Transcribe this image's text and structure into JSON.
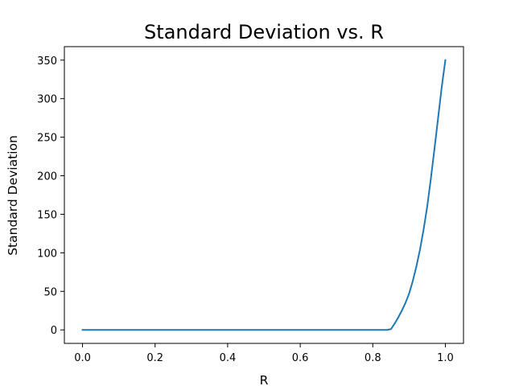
{
  "chart_data": {
    "type": "line",
    "title": "Standard Deviation vs. R",
    "xlabel": "R",
    "ylabel": "Standard Deviation",
    "xlim": [
      -0.05,
      1.05
    ],
    "ylim": [
      -17.5,
      367.5
    ],
    "xticks": [
      0.0,
      0.2,
      0.4,
      0.6,
      0.8,
      1.0
    ],
    "xtick_labels": [
      "0.0",
      "0.2",
      "0.4",
      "0.6",
      "0.8",
      "1.0"
    ],
    "yticks": [
      0,
      50,
      100,
      150,
      200,
      250,
      300,
      350
    ],
    "ytick_labels": [
      "0",
      "50",
      "100",
      "150",
      "200",
      "250",
      "300",
      "350"
    ],
    "grid": false,
    "series": [
      {
        "color": "#1f77b4",
        "x": [
          0.0,
          0.1,
          0.2,
          0.3,
          0.4,
          0.5,
          0.6,
          0.7,
          0.8,
          0.84,
          0.85,
          0.86,
          0.87,
          0.88,
          0.89,
          0.9,
          0.91,
          0.92,
          0.93,
          0.94,
          0.95,
          0.96,
          0.97,
          0.98,
          0.99,
          1.0
        ],
        "y": [
          0,
          0,
          0,
          0,
          0,
          0,
          0,
          0,
          0,
          0,
          1,
          8,
          16,
          25,
          35,
          47,
          63,
          82,
          104,
          130,
          160,
          196,
          235,
          275,
          315,
          350
        ]
      }
    ]
  }
}
